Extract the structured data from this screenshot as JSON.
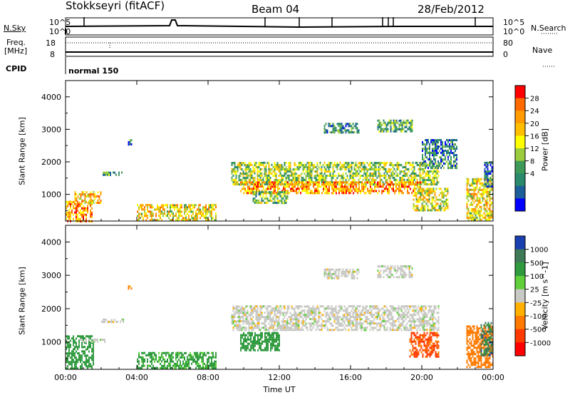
{
  "header": {
    "station": "Stokkseyri (fitACF)",
    "beam": "Beam 04",
    "date": "28/Feb/2012"
  },
  "noise_panel": {
    "left_label": "N.Sky",
    "right_label": "N.Search",
    "left_ticks": [
      "10^5",
      "10^0"
    ],
    "right_ticks": [
      "10^5",
      "10^0"
    ]
  },
  "freq_panel": {
    "left_label_line1": "Freq.",
    "left_label_line2": "[MHz]",
    "right_label": "Nave",
    "left_ticks": [
      "18",
      "8"
    ],
    "right_ticks": [
      "80",
      "0"
    ]
  },
  "cpid": {
    "label": "CPID",
    "mode": "normal 150"
  },
  "chart_data": [
    {
      "type": "heatmap",
      "name": "power",
      "ylabel": "Slant Range [km]",
      "ylim": [
        180,
        4500
      ],
      "y_ticks": [
        1000,
        2000,
        3000,
        4000
      ],
      "x_ticks": [
        "00:00",
        "04:00",
        "08:00",
        "12:00",
        "16:00",
        "20:00",
        "00:00"
      ],
      "colorbar_label": "Power [dB]",
      "colorbar_ticks": [
        "28",
        "24",
        "20",
        "16",
        "12",
        "8",
        "4"
      ],
      "colorbar_colors": [
        "#ff0000",
        "#ff6a00",
        "#ff9a00",
        "#ffbf00",
        "#ffff00",
        "#9bcc3e",
        "#3e9a58",
        "#2a8a6b",
        "#1b5e9a",
        "#0000ff"
      ],
      "color_min": 0,
      "color_max": 30,
      "regions": [
        {
          "t0": 0.0,
          "t1": 1.5,
          "r0": 150,
          "r1": 800,
          "v": 22
        },
        {
          "t0": 0.5,
          "t1": 2.0,
          "r0": 700,
          "r1": 1100,
          "v": 20
        },
        {
          "t0": 2.0,
          "t1": 3.3,
          "r0": 1550,
          "r1": 1700,
          "v": 10
        },
        {
          "t0": 3.5,
          "t1": 3.7,
          "r0": 2500,
          "r1": 2700,
          "v": 6
        },
        {
          "t0": 4.0,
          "t1": 8.5,
          "r0": 200,
          "r1": 700,
          "v": 18
        },
        {
          "t0": 9.3,
          "t1": 21.0,
          "r0": 1300,
          "r1": 2000,
          "v": 14
        },
        {
          "t0": 9.8,
          "t1": 20.0,
          "r0": 1000,
          "r1": 1400,
          "v": 22
        },
        {
          "t0": 10.5,
          "t1": 12.5,
          "r0": 700,
          "r1": 1100,
          "v": 12
        },
        {
          "t0": 14.5,
          "t1": 16.5,
          "r0": 2900,
          "r1": 3200,
          "v": 8
        },
        {
          "t0": 17.5,
          "t1": 19.5,
          "r0": 2900,
          "r1": 3300,
          "v": 10
        },
        {
          "t0": 19.5,
          "t1": 21.5,
          "r0": 500,
          "r1": 1200,
          "v": 16
        },
        {
          "t0": 20.0,
          "t1": 22.0,
          "r0": 1800,
          "r1": 2700,
          "v": 8
        },
        {
          "t0": 22.5,
          "t1": 24.0,
          "r0": 200,
          "r1": 1500,
          "v": 18
        },
        {
          "t0": 23.5,
          "t1": 24.0,
          "r0": 1200,
          "r1": 2000,
          "v": 6
        }
      ]
    },
    {
      "type": "heatmap",
      "name": "velocity",
      "ylabel": "Slant Range [km]",
      "ylim": [
        180,
        4500
      ],
      "y_ticks": [
        1000,
        2000,
        3000,
        4000
      ],
      "x_ticks": [
        "00:00",
        "04:00",
        "08:00",
        "12:00",
        "16:00",
        "20:00",
        "00:00"
      ],
      "xlabel": "Time UT",
      "colorbar_label": "Velocity [m s^-1]",
      "colorbar_ticks": [
        "1000",
        "500",
        "100",
        "25",
        "-25",
        "-100",
        "-500",
        "-1000"
      ],
      "colorbar_colors": [
        "#1a3fb0",
        "#3e7a55",
        "#2f9a3e",
        "#5fd03a",
        "#c8c8c4",
        "#ffb000",
        "#ff7a00",
        "#ff3a00",
        "#ff0000"
      ],
      "regions": [
        {
          "t0": 0.0,
          "t1": 1.6,
          "r0": 180,
          "r1": 1200,
          "v": 200
        },
        {
          "t0": 0.8,
          "t1": 2.2,
          "r0": 950,
          "r1": 1100,
          "v": 0
        },
        {
          "t0": 2.0,
          "t1": 3.3,
          "r0": 1550,
          "r1": 1700,
          "v": 0
        },
        {
          "t0": 3.5,
          "t1": 3.7,
          "r0": 2550,
          "r1": 2700,
          "v": -150
        },
        {
          "t0": 4.0,
          "t1": 8.5,
          "r0": 200,
          "r1": 700,
          "v": 150
        },
        {
          "t0": 9.3,
          "t1": 21.0,
          "r0": 1300,
          "r1": 2100,
          "v": 0
        },
        {
          "t0": 9.8,
          "t1": 12.0,
          "r0": 700,
          "r1": 1300,
          "v": 250
        },
        {
          "t0": 14.5,
          "t1": 16.5,
          "r0": 2900,
          "r1": 3200,
          "v": 0
        },
        {
          "t0": 17.5,
          "t1": 19.5,
          "r0": 2900,
          "r1": 3300,
          "v": 0
        },
        {
          "t0": 19.3,
          "t1": 21.0,
          "r0": 500,
          "r1": 1300,
          "v": -600
        },
        {
          "t0": 22.5,
          "t1": 24.0,
          "r0": 200,
          "r1": 1500,
          "v": -300
        },
        {
          "t0": 23.3,
          "t1": 24.0,
          "r0": 600,
          "r1": 1600,
          "v": 700
        }
      ]
    }
  ]
}
